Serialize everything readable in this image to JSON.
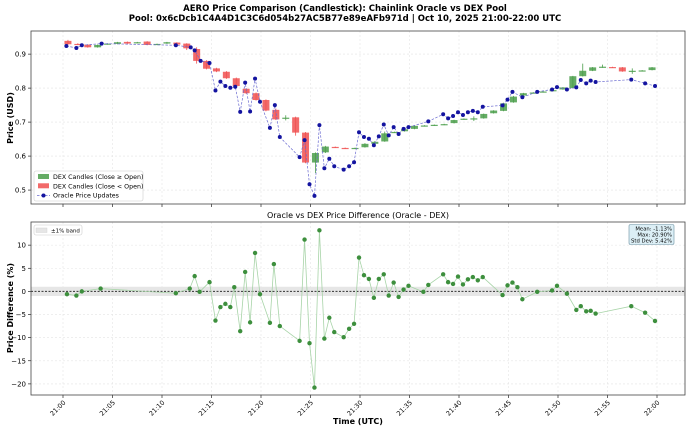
{
  "title": "AERO Price Comparison (Candlestick): Chainlink Oracle vs DEX Pool",
  "subtitle": "Pool: 0x6cDcb1C4A4D1C3C6d054b27AC5B77e89eAFb971d | Oct 10, 2025 21:00-22:00 UTC",
  "chart_data": [
    {
      "type": "candlestick+line",
      "ylabel": "Price (USD)",
      "ylim": [
        0.459,
        0.968
      ],
      "yticks": [
        "0.5",
        "0.6",
        "0.7",
        "0.8",
        "0.9"
      ],
      "grid": true,
      "legend_position": "lower-left",
      "legend": [
        "DEX Candles (Close ≥ Open)",
        "DEX Candles (Close < Open)",
        "Oracle Price Updates"
      ],
      "colors": {
        "up": "#4a9e4a",
        "down": "#f05050",
        "oracle": "#1414a0"
      },
      "candles_time_unit": "minute after 21:00 UTC",
      "candles": [
        [
          0,
          0.939,
          0.942,
          0.928,
          0.929
        ],
        [
          1,
          0.93,
          0.932,
          0.927,
          0.928
        ],
        [
          2,
          0.928,
          0.929,
          0.919,
          0.92
        ],
        [
          3,
          0.92,
          0.928,
          0.919,
          0.927
        ],
        [
          4,
          0.929,
          0.932,
          0.928,
          0.931
        ],
        [
          5,
          0.93,
          0.936,
          0.929,
          0.935
        ],
        [
          6,
          0.936,
          0.937,
          0.93,
          0.931
        ],
        [
          7,
          0.933,
          0.936,
          0.932,
          0.935
        ],
        [
          8,
          0.937,
          0.938,
          0.926,
          0.927
        ],
        [
          9,
          0.928,
          0.931,
          0.927,
          0.93
        ],
        [
          10,
          0.931,
          0.936,
          0.93,
          0.935
        ],
        [
          11,
          0.934,
          0.935,
          0.927,
          0.928
        ],
        [
          12,
          0.931,
          0.932,
          0.912,
          0.917
        ],
        [
          13,
          0.915,
          0.92,
          0.872,
          0.88
        ],
        [
          14,
          0.88,
          0.882,
          0.855,
          0.857
        ],
        [
          15,
          0.858,
          0.86,
          0.847,
          0.849
        ],
        [
          16,
          0.848,
          0.85,
          0.827,
          0.829
        ],
        [
          17,
          0.829,
          0.831,
          0.804,
          0.806
        ],
        [
          18,
          0.798,
          0.8,
          0.783,
          0.785
        ],
        [
          19,
          0.785,
          0.787,
          0.763,
          0.765
        ],
        [
          20,
          0.765,
          0.767,
          0.732,
          0.734
        ],
        [
          21,
          0.736,
          0.74,
          0.706,
          0.708
        ],
        [
          22,
          0.711,
          0.72,
          0.705,
          0.713
        ],
        [
          23,
          0.714,
          0.716,
          0.66,
          0.669
        ],
        [
          24,
          0.669,
          0.671,
          0.579,
          0.581
        ],
        [
          25,
          0.581,
          0.611,
          0.55,
          0.609
        ],
        [
          26,
          0.611,
          0.63,
          0.609,
          0.628
        ],
        [
          27,
          0.627,
          0.628,
          0.624,
          0.625
        ],
        [
          28,
          0.624,
          0.625,
          0.621,
          0.622
        ],
        [
          29,
          0.622,
          0.625,
          0.621,
          0.624
        ],
        [
          30,
          0.626,
          0.638,
          0.625,
          0.636
        ],
        [
          31,
          0.636,
          0.644,
          0.635,
          0.642
        ],
        [
          32,
          0.643,
          0.672,
          0.642,
          0.667
        ],
        [
          33,
          0.669,
          0.672,
          0.668,
          0.671
        ],
        [
          34,
          0.673,
          0.68,
          0.672,
          0.679
        ],
        [
          35,
          0.68,
          0.69,
          0.679,
          0.689
        ],
        [
          36,
          0.688,
          0.691,
          0.687,
          0.69
        ],
        [
          37,
          0.69,
          0.693,
          0.689,
          0.692
        ],
        [
          38,
          0.692,
          0.695,
          0.691,
          0.694
        ],
        [
          39,
          0.697,
          0.707,
          0.696,
          0.706
        ],
        [
          40,
          0.708,
          0.711,
          0.707,
          0.71
        ],
        [
          41,
          0.71,
          0.717,
          0.703,
          0.711
        ],
        [
          42,
          0.711,
          0.725,
          0.71,
          0.724
        ],
        [
          43,
          0.726,
          0.735,
          0.725,
          0.734
        ],
        [
          44,
          0.733,
          0.757,
          0.732,
          0.755
        ],
        [
          45,
          0.758,
          0.777,
          0.757,
          0.775
        ],
        [
          46,
          0.778,
          0.786,
          0.777,
          0.785
        ],
        [
          47,
          0.785,
          0.788,
          0.784,
          0.787
        ],
        [
          48,
          0.788,
          0.791,
          0.787,
          0.79
        ],
        [
          49,
          0.792,
          0.795,
          0.791,
          0.794
        ],
        [
          50,
          0.796,
          0.803,
          0.795,
          0.802
        ],
        [
          51,
          0.8,
          0.836,
          0.799,
          0.835
        ],
        [
          52,
          0.835,
          0.872,
          0.834,
          0.851
        ],
        [
          53,
          0.851,
          0.862,
          0.85,
          0.861
        ],
        [
          54,
          0.861,
          0.869,
          0.86,
          0.863
        ],
        [
          55,
          0.862,
          0.863,
          0.859,
          0.86
        ],
        [
          56,
          0.861,
          0.862,
          0.848,
          0.849
        ],
        [
          57,
          0.849,
          0.858,
          0.842,
          0.851
        ],
        [
          58,
          0.85,
          0.853,
          0.849,
          0.852
        ],
        [
          59,
          0.853,
          0.862,
          0.852,
          0.861
        ]
      ],
      "oracle": [
        [
          0.34,
          0.924
        ],
        [
          1.35,
          0.918
        ],
        [
          1.9,
          0.926
        ],
        [
          3.9,
          0.931
        ],
        [
          11.4,
          0.926
        ],
        [
          12.9,
          0.92
        ],
        [
          13.3,
          0.911
        ],
        [
          13.9,
          0.88
        ],
        [
          14.8,
          0.874
        ],
        [
          15.4,
          0.793
        ],
        [
          15.9,
          0.819
        ],
        [
          16.4,
          0.806
        ],
        [
          16.9,
          0.801
        ],
        [
          17.4,
          0.804
        ],
        [
          17.9,
          0.73
        ],
        [
          18.4,
          0.816
        ],
        [
          18.9,
          0.731
        ],
        [
          19.4,
          0.828
        ],
        [
          19.9,
          0.76
        ],
        [
          20.9,
          0.683
        ],
        [
          21.4,
          0.75
        ],
        [
          21.9,
          0.656
        ],
        [
          23.9,
          0.597
        ],
        [
          24.4,
          0.647
        ],
        [
          24.9,
          0.517
        ],
        [
          25.4,
          0.483
        ],
        [
          25.9,
          0.691
        ],
        [
          26.4,
          0.564
        ],
        [
          26.9,
          0.592
        ],
        [
          27.4,
          0.57
        ],
        [
          28.35,
          0.56
        ],
        [
          28.9,
          0.57
        ],
        [
          29.4,
          0.582
        ],
        [
          29.9,
          0.67
        ],
        [
          30.4,
          0.656
        ],
        [
          30.9,
          0.651
        ],
        [
          31.4,
          0.632
        ],
        [
          31.9,
          0.658
        ],
        [
          32.4,
          0.693
        ],
        [
          32.9,
          0.661
        ],
        [
          33.4,
          0.685
        ],
        [
          33.9,
          0.665
        ],
        [
          34.4,
          0.68
        ],
        [
          34.9,
          0.685
        ],
        [
          36.9,
          0.702
        ],
        [
          38.4,
          0.723
        ],
        [
          38.9,
          0.711
        ],
        [
          39.4,
          0.718
        ],
        [
          39.9,
          0.729
        ],
        [
          40.4,
          0.721
        ],
        [
          40.9,
          0.729
        ],
        [
          41.4,
          0.733
        ],
        [
          41.9,
          0.729
        ],
        [
          42.4,
          0.745
        ],
        [
          44.4,
          0.749
        ],
        [
          44.9,
          0.766
        ],
        [
          45.4,
          0.789
        ],
        [
          46.4,
          0.773
        ],
        [
          47.9,
          0.789
        ],
        [
          49.4,
          0.796
        ],
        [
          49.9,
          0.803
        ],
        [
          50.9,
          0.796
        ],
        [
          51.85,
          0.802
        ],
        [
          52.3,
          0.824
        ],
        [
          52.85,
          0.814
        ],
        [
          53.3,
          0.822
        ],
        [
          53.8,
          0.818
        ],
        [
          57.4,
          0.825
        ],
        [
          58.8,
          0.814
        ],
        [
          59.8,
          0.806
        ]
      ]
    },
    {
      "type": "line",
      "title": "Oracle vs DEX Price Difference (Oracle - DEX)",
      "xlabel": "Time (UTC)",
      "ylabel": "Price Difference (%)",
      "ylim": [
        -22.4,
        15
      ],
      "yticks": [
        "10",
        "5",
        "0",
        "−5",
        "−10",
        "−15",
        "−20"
      ],
      "xticks": [
        "21:00",
        "21:05",
        "21:10",
        "21:15",
        "21:20",
        "21:25",
        "21:30",
        "21:35",
        "21:40",
        "21:45",
        "21:50",
        "21:55",
        "22:00"
      ],
      "grid": true,
      "band_label": "±1% band",
      "legend_position": "top-left",
      "stats": [
        "Mean: -1.13%",
        "Max: 20.90%",
        "Std Dev: 5.42%"
      ],
      "colors": {
        "points": "#3d8f3d",
        "line": "#a8d4a8",
        "band": "#e6e6e6",
        "stats_bg": "#dcefF6"
      },
      "points": [
        [
          0.4,
          -0.6
        ],
        [
          1.35,
          -0.9
        ],
        [
          1.9,
          0
        ],
        [
          3.8,
          0.6
        ],
        [
          11.4,
          -0.4
        ],
        [
          12.8,
          0.6
        ],
        [
          13.3,
          3.3
        ],
        [
          13.8,
          -0.1
        ],
        [
          14.8,
          2.0
        ],
        [
          15.4,
          -6.3
        ],
        [
          15.9,
          -3.4
        ],
        [
          16.4,
          -2.7
        ],
        [
          16.9,
          -3.4
        ],
        [
          17.3,
          0.9
        ],
        [
          17.9,
          -8.6
        ],
        [
          18.4,
          4.2
        ],
        [
          18.9,
          -6.7
        ],
        [
          19.4,
          8.3
        ],
        [
          19.9,
          -0.6
        ],
        [
          20.9,
          -6.8
        ],
        [
          21.3,
          5.9
        ],
        [
          21.9,
          -7.5
        ],
        [
          23.9,
          -10.7
        ],
        [
          24.4,
          11.2
        ],
        [
          24.9,
          -11.2
        ],
        [
          25.4,
          -20.8
        ],
        [
          25.9,
          13.2
        ],
        [
          26.4,
          -10.2
        ],
        [
          26.9,
          -5.7
        ],
        [
          27.4,
          -8.8
        ],
        [
          28.35,
          -9.9
        ],
        [
          28.9,
          -8.1
        ],
        [
          29.4,
          -7.0
        ],
        [
          29.9,
          7.3
        ],
        [
          30.4,
          3.5
        ],
        [
          30.9,
          2.7
        ],
        [
          31.4,
          -1.4
        ],
        [
          31.9,
          2.7
        ],
        [
          32.4,
          3.7
        ],
        [
          32.9,
          -0.9
        ],
        [
          33.4,
          1.9
        ],
        [
          33.9,
          -1.2
        ],
        [
          34.4,
          0.4
        ],
        [
          34.9,
          1.2
        ],
        [
          36.4,
          -0.1
        ],
        [
          36.9,
          1.4
        ],
        [
          38.4,
          3.7
        ],
        [
          38.9,
          2.0
        ],
        [
          39.4,
          1.6
        ],
        [
          39.9,
          3.2
        ],
        [
          40.4,
          1.5
        ],
        [
          40.9,
          2.6
        ],
        [
          41.4,
          3.1
        ],
        [
          41.9,
          2.4
        ],
        [
          42.4,
          3.1
        ],
        [
          44.4,
          -0.8
        ],
        [
          44.9,
          1.3
        ],
        [
          45.4,
          1.9
        ],
        [
          45.9,
          0.9
        ],
        [
          46.4,
          -1.7
        ],
        [
          47.9,
          -0.1
        ],
        [
          49.4,
          0.2
        ],
        [
          49.9,
          1.2
        ],
        [
          50.9,
          -0.5
        ],
        [
          51.85,
          -4.0
        ],
        [
          52.3,
          -3.2
        ],
        [
          52.85,
          -4.3
        ],
        [
          53.3,
          -4.2
        ],
        [
          53.8,
          -4.8
        ],
        [
          57.4,
          -3.2
        ],
        [
          58.8,
          -4.6
        ],
        [
          59.8,
          -6.4
        ]
      ]
    }
  ]
}
